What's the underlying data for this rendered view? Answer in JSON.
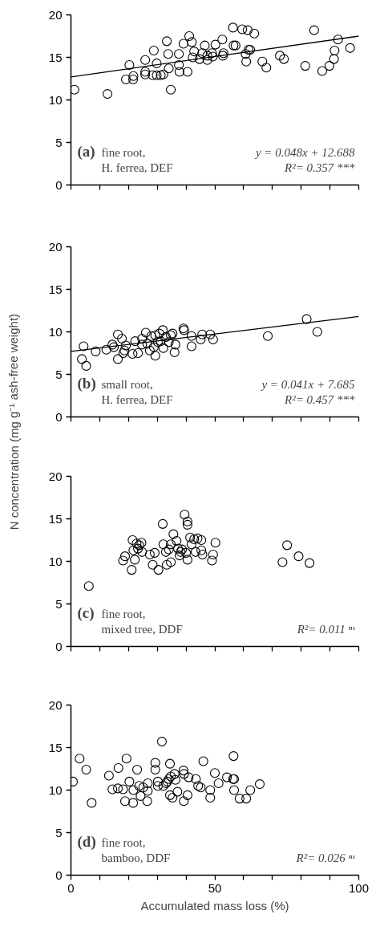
{
  "chart_data": [
    {
      "type": "scatter",
      "xlim": [
        0,
        100
      ],
      "ylim": [
        0,
        20
      ],
      "xticks": [
        0,
        {
          "value": 10,
          "label": null
        },
        {
          "value": 20,
          "label": null
        },
        {
          "value": 30,
          "label": null
        },
        {
          "value": 40,
          "label": null
        },
        50,
        {
          "value": 60,
          "label": null
        },
        {
          "value": 70,
          "label": null
        },
        {
          "value": 80,
          "label": null
        },
        {
          "value": 90,
          "label": null
        },
        100
      ],
      "yticks": [
        0,
        5,
        10,
        15,
        20
      ],
      "tick_labels": "y",
      "grid": false,
      "series": [
        {
          "marker": "circle",
          "color": "#000000",
          "x": [
            1.2,
            12.7,
            19.1,
            20.3,
            21.6,
            21.7,
            25.8,
            25.8,
            25.8,
            28.4,
            28.8,
            29.8,
            29.8,
            31.2,
            32.1,
            33.3,
            33.8,
            34.0,
            34.7,
            37.5,
            37.5,
            37.7,
            40.5,
            39.1,
            41.1,
            42.0,
            42.3,
            42.8,
            44.7,
            45.6,
            46.5,
            47.4,
            47.4,
            49.0,
            49.3,
            50.2,
            52.6,
            52.8,
            53.0,
            56.3,
            56.5,
            57.2,
            59.5,
            60.7,
            60.9,
            61.4,
            61.7,
            62.3,
            63.7,
            66.5,
            67.9,
            72.6,
            74.0,
            81.4,
            84.5,
            87.3,
            89.8,
            91.4,
            91.6,
            92.8,
            97.0
          ],
          "values": [
            11.2,
            10.7,
            12.4,
            14.1,
            12.4,
            12.8,
            14.7,
            13.3,
            13.0,
            12.9,
            15.8,
            14.3,
            12.9,
            12.9,
            13.0,
            16.9,
            15.4,
            13.7,
            11.2,
            15.4,
            14.1,
            13.3,
            13.3,
            16.6,
            17.5,
            16.8,
            15.0,
            15.7,
            14.8,
            15.5,
            16.4,
            14.7,
            15.2,
            15.5,
            15.1,
            16.5,
            17.1,
            15.2,
            15.5,
            18.5,
            16.4,
            16.4,
            18.3,
            15.4,
            14.5,
            18.2,
            15.9,
            15.9,
            17.8,
            14.5,
            13.8,
            15.2,
            14.8,
            14.0,
            18.2,
            13.4,
            14.0,
            14.8,
            15.8,
            17.1,
            16.1
          ]
        },
        {
          "type": "line",
          "marker": "none",
          "color": "#000000",
          "x": [
            0,
            100
          ],
          "values": [
            12.7,
            17.5
          ]
        }
      ],
      "annotations": [
        "(a)",
        "fine root,",
        "H. ferrea, DEF",
        "y = 0.048x + 12.688",
        "R²= 0.357 ***"
      ]
    },
    {
      "type": "scatter",
      "ylabel": "N concentration (mg g⁻¹ ash-free weight)",
      "xlim": [
        0,
        100
      ],
      "ylim": [
        0,
        20
      ],
      "xticks": [
        0,
        {
          "value": 10,
          "label": null
        },
        {
          "value": 20,
          "label": null
        },
        {
          "value": 30,
          "label": null
        },
        {
          "value": 40,
          "label": null
        },
        50,
        {
          "value": 60,
          "label": null
        },
        {
          "value": 70,
          "label": null
        },
        {
          "value": 80,
          "label": null
        },
        {
          "value": 90,
          "label": null
        },
        100
      ],
      "yticks": [
        0,
        5,
        10,
        15,
        20
      ],
      "tick_labels": "y",
      "grid": false,
      "series": [
        {
          "marker": "circle",
          "color": "#000000",
          "x": [
            4.4,
            3.8,
            5.3,
            8.6,
            12.3,
            14.4,
            14.9,
            16.3,
            16.3,
            17.7,
            18.2,
            18.6,
            19.1,
            21.4,
            22.3,
            23.3,
            24.7,
            24.7,
            26.0,
            26.5,
            27.4,
            27.9,
            28.8,
            29.3,
            29.3,
            30.2,
            30.7,
            31.2,
            31.9,
            32.1,
            33.0,
            34.0,
            34.7,
            35.3,
            36.3,
            36.0,
            39.1,
            39.3,
            41.9,
            41.9,
            45.1,
            45.6,
            48.4,
            49.4,
            68.4,
            81.9,
            85.6
          ],
          "values": [
            8.3,
            6.8,
            6.0,
            7.7,
            7.9,
            8.5,
            8.2,
            9.7,
            6.8,
            9.2,
            7.5,
            7.8,
            8.4,
            7.4,
            8.9,
            7.5,
            8.5,
            9.2,
            9.9,
            8.6,
            7.8,
            9.5,
            8.2,
            7.2,
            9.6,
            8.8,
            9.8,
            8.9,
            10.2,
            8.1,
            9.4,
            8.8,
            9.6,
            9.8,
            8.5,
            7.6,
            10.4,
            10.2,
            9.5,
            8.3,
            9.1,
            9.7,
            9.7,
            9.1,
            9.5,
            11.5,
            10.0
          ]
        },
        {
          "type": "line",
          "marker": "none",
          "color": "#000000",
          "x": [
            0,
            100
          ],
          "values": [
            7.7,
            11.8
          ]
        }
      ],
      "annotations": [
        "(b)",
        "small root,",
        "H. ferrea, DEF",
        "y = 0.041x + 7.685",
        "R²= 0.457 ***"
      ]
    },
    {
      "type": "scatter",
      "xlim": [
        0,
        100
      ],
      "ylim": [
        0,
        20
      ],
      "xticks": [
        0,
        {
          "value": 10,
          "label": null
        },
        {
          "value": 20,
          "label": null
        },
        {
          "value": 30,
          "label": null
        },
        {
          "value": 40,
          "label": null
        },
        50,
        {
          "value": 60,
          "label": null
        },
        {
          "value": 70,
          "label": null
        },
        {
          "value": 80,
          "label": null
        },
        {
          "value": 90,
          "label": null
        },
        100
      ],
      "yticks": [
        0,
        5,
        10,
        15,
        20
      ],
      "tick_labels": "y",
      "grid": false,
      "series": [
        {
          "marker": "circle",
          "color": "#000000",
          "x": [
            6.2,
            18.1,
            18.8,
            21.1,
            21.4,
            21.7,
            22.2,
            22.8,
            23.3,
            23.7,
            24.5,
            24.7,
            27.4,
            29.1,
            30.4,
            28.4,
            31.9,
            32.1,
            33.0,
            33.3,
            34.0,
            34.7,
            34.7,
            35.6,
            36.7,
            37.2,
            37.7,
            38.1,
            38.6,
            39.5,
            40.0,
            40.5,
            40.5,
            40.5,
            41.4,
            41.9,
            42.8,
            43.3,
            44.0,
            45.3,
            45.3,
            45.7,
            49.0,
            49.4,
            50.2,
            73.5,
            75.1,
            79.1,
            82.9
          ],
          "values": [
            7.1,
            10.1,
            10.6,
            9.0,
            12.5,
            11.3,
            10.2,
            12.1,
            11.5,
            11.9,
            12.2,
            11.1,
            10.8,
            11.0,
            9.0,
            9.6,
            14.4,
            12.0,
            11.1,
            9.6,
            11.4,
            12.0,
            9.9,
            13.2,
            12.4,
            11.5,
            10.7,
            11.1,
            11.4,
            15.5,
            11.0,
            14.7,
            14.3,
            10.2,
            12.8,
            12.0,
            12.6,
            11.1,
            12.7,
            12.5,
            11.3,
            10.8,
            10.1,
            10.8,
            12.2,
            9.9,
            11.9,
            10.6,
            9.8
          ]
        }
      ],
      "annotations": [
        "(c)",
        "fine root,",
        "mixed tree, DDF",
        "R²= 0.011 ⁿˢ"
      ]
    },
    {
      "type": "scatter",
      "xlabel": "Accumulated mass loss (%)",
      "xlim": [
        0,
        100
      ],
      "ylim": [
        0,
        20
      ],
      "xticks": [
        0,
        {
          "value": 10,
          "label": null
        },
        {
          "value": 20,
          "label": null
        },
        {
          "value": 30,
          "label": null
        },
        {
          "value": 40,
          "label": null
        },
        50,
        {
          "value": 60,
          "label": null
        },
        {
          "value": 70,
          "label": null
        },
        {
          "value": 80,
          "label": null
        },
        {
          "value": 90,
          "label": null
        },
        100
      ],
      "yticks": [
        0,
        5,
        10,
        15,
        20
      ],
      "grid": false,
      "series": [
        {
          "marker": "circle",
          "color": "#000000",
          "x": [
            0.7,
            3.0,
            5.3,
            7.2,
            13.2,
            14.4,
            16.3,
            16.5,
            18.1,
            18.8,
            19.3,
            20.3,
            21.6,
            21.7,
            23.0,
            23.7,
            24.2,
            25.1,
            26.5,
            26.7,
            26.7,
            29.3,
            29.3,
            30.2,
            30.2,
            31.6,
            32.1,
            33.0,
            33.5,
            34.0,
            34.4,
            34.4,
            34.7,
            35.3,
            36.0,
            36.3,
            37.0,
            39.1,
            39.3,
            39.2,
            40.5,
            40.9,
            43.4,
            44.2,
            45.1,
            46.0,
            48.4,
            48.4,
            50.0,
            51.3,
            54.2,
            56.3,
            56.5,
            56.7,
            56.7,
            58.6,
            60.9,
            62.3,
            65.6
          ],
          "values": [
            11.0,
            13.7,
            12.4,
            8.5,
            11.7,
            10.1,
            10.2,
            12.6,
            10.1,
            8.7,
            13.7,
            11.0,
            8.5,
            10.0,
            12.4,
            10.5,
            9.3,
            10.3,
            8.7,
            10.8,
            9.9,
            13.2,
            12.4,
            11.0,
            10.5,
            15.7,
            10.5,
            10.8,
            11.0,
            11.3,
            13.1,
            9.4,
            11.6,
            9.1,
            11.9,
            11.2,
            9.8,
            12.3,
            11.9,
            8.7,
            9.4,
            11.5,
            11.3,
            10.5,
            10.3,
            13.4,
            10.0,
            9.1,
            12.0,
            10.8,
            11.5,
            11.3,
            14.0,
            11.3,
            10.0,
            9.0,
            9.0,
            10.0,
            10.7
          ]
        }
      ],
      "annotations": [
        "(d)",
        "fine root,",
        "bamboo, DDF",
        "R²= 0.026 ⁿˢ"
      ]
    }
  ]
}
